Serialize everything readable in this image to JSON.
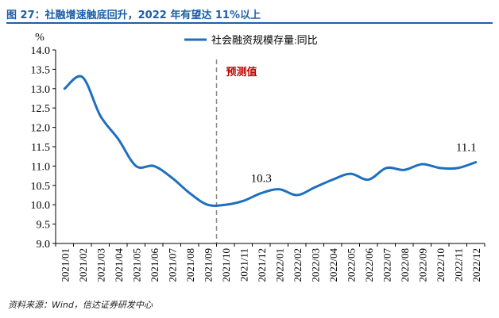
{
  "figure": {
    "title": "图 27：社融增速触底回升，2022 年有望达 11%以上",
    "source": "资料来源：Wind，信达证券研发中心"
  },
  "chart_data": {
    "type": "line",
    "title": "",
    "xlabel": "",
    "ylabel": "%",
    "ylim": [
      9.0,
      14.0
    ],
    "yticks": [
      "9.0",
      "9.5",
      "10.0",
      "10.5",
      "11.0",
      "11.5",
      "12.0",
      "12.5",
      "13.0",
      "13.5",
      "14.0"
    ],
    "categories": [
      "2021/01",
      "2021/02",
      "2021/03",
      "2021/04",
      "2021/05",
      "2021/06",
      "2021/07",
      "2021/08",
      "2021/09",
      "2021/10",
      "2021/11",
      "2021/12",
      "2022/01",
      "2022/02",
      "2022/03",
      "2022/04",
      "2022/05",
      "2022/06",
      "2022/07",
      "2022/08",
      "2022/09",
      "2022/10",
      "2022/11",
      "2022/12"
    ],
    "series": [
      {
        "name": "社会融资规模存量:同比",
        "color": "#1F6FBF",
        "values": [
          13.0,
          13.3,
          12.3,
          11.7,
          11.0,
          11.0,
          10.7,
          10.3,
          10.0,
          10.0,
          10.1,
          10.3,
          10.4,
          10.25,
          10.45,
          10.65,
          10.8,
          10.65,
          10.95,
          10.9,
          11.05,
          10.95,
          10.95,
          11.1
        ]
      }
    ],
    "annotations": [
      {
        "text": "10.3",
        "category": "2021/12",
        "value": 10.3
      },
      {
        "text": "11.1",
        "category": "2022/12",
        "value": 11.1
      }
    ],
    "forecast": {
      "label": "预测值",
      "color": "#C00000",
      "divider_after": "2021/09",
      "line_color": "#888888"
    },
    "legend_position": "top"
  }
}
